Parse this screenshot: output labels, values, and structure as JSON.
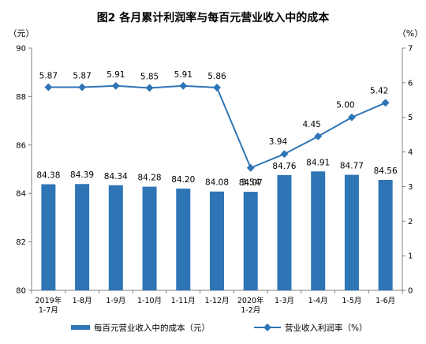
{
  "chart_data": {
    "type": "bar+line",
    "title": "图2 各月累计利润率与每百元营业收入中的成本",
    "left_unit": "（元）",
    "right_unit": "（%）",
    "categories": [
      [
        "2019年",
        "1-7月"
      ],
      [
        "1-8月"
      ],
      [
        "1-9月"
      ],
      [
        "1-10月"
      ],
      [
        "1-11月"
      ],
      [
        "1-12月"
      ],
      [
        "2020年",
        "1-2月"
      ],
      [
        "1-3月"
      ],
      [
        "1-4月"
      ],
      [
        "1-5月"
      ],
      [
        "1-6月"
      ]
    ],
    "left_axis": {
      "min": 80,
      "max": 90,
      "ticks": [
        80,
        82,
        84,
        86,
        88,
        90
      ]
    },
    "right_axis": {
      "min": 0,
      "max": 7,
      "ticks": [
        0,
        1,
        2,
        3,
        4,
        5,
        6,
        7
      ]
    },
    "series": [
      {
        "name": "每百元营业收入中的成本（元）",
        "kind": "bar",
        "axis": "left",
        "color": "#2E75B6",
        "values": [
          84.38,
          84.39,
          84.34,
          84.28,
          84.2,
          84.08,
          84.07,
          84.76,
          84.91,
          84.77,
          84.56
        ],
        "labels": [
          "84.38",
          "84.39",
          "84.34",
          "84.28",
          "84.20",
          "84.08",
          "84.07",
          "84.76",
          "84.91",
          "84.77",
          "84.56"
        ]
      },
      {
        "name": "营业收入利润率（%）",
        "kind": "line",
        "axis": "right",
        "color": "#2E75B6",
        "values": [
          5.87,
          5.87,
          5.91,
          5.85,
          5.91,
          5.86,
          3.54,
          3.94,
          4.45,
          5.0,
          5.42
        ],
        "labels": [
          "5.87",
          "5.87",
          "5.91",
          "5.85",
          "5.91",
          "5.86",
          "3.54",
          "3.94",
          "4.45",
          "5.00",
          "5.42"
        ]
      }
    ],
    "legend_position": "bottom",
    "grid": false
  }
}
